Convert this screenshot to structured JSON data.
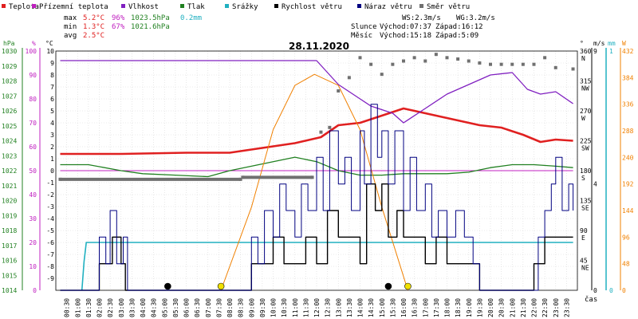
{
  "legend": [
    {
      "label": "Teplota",
      "color": "#e02020"
    },
    {
      "label": "Přízemní teplota",
      "color": "#c020c0"
    },
    {
      "label": "Vlhkost",
      "color": "#8020c0"
    },
    {
      "label": "Tlak",
      "color": "#208020"
    },
    {
      "label": "Srážky",
      "color": "#20b0c0"
    },
    {
      "label": "Rychlost větru",
      "color": "#000000"
    },
    {
      "label": "Náraz větru",
      "color": "#000080"
    },
    {
      "label": "Směr větru",
      "color": "#707070"
    }
  ],
  "stats": {
    "max_label": "max",
    "max_temp": "5.2°C",
    "max_hum": "96%",
    "max_press": "1023.5hPa",
    "max_rain": "0.2mm",
    "min_label": "min",
    "min_temp": "1.3°C",
    "min_hum": "67%",
    "min_press": "1021.6hPa",
    "avg_label": "avg",
    "avg_temp": "2.5°C"
  },
  "wind_info": {
    "ws": "WS:2.3m/s",
    "wg": "WG:3.2m/s"
  },
  "sun_moon": {
    "sun_label": "Slunce",
    "sun_rise": "Východ:07:37",
    "sun_set": "Západ:16:12",
    "moon_label": "Měsíc",
    "moon_rise": "Východ:15:18",
    "moon_set": "Západ:5:09"
  },
  "chart_data": {
    "type": "line",
    "title": "28.11.2020",
    "x_axis": {
      "label": "čas",
      "ticks": [
        "00:30",
        "01:00",
        "01:30",
        "02:00",
        "02:30",
        "03:00",
        "03:30",
        "04:00",
        "04:30",
        "05:00",
        "05:30",
        "06:00",
        "06:30",
        "07:00",
        "07:30",
        "08:00",
        "08:30",
        "09:00",
        "09:30",
        "10:00",
        "10:30",
        "11:00",
        "11:30",
        "12:00",
        "12:30",
        "13:00",
        "13:30",
        "14:00",
        "14:30",
        "15:00",
        "15:30",
        "16:00",
        "16:30",
        "17:00",
        "17:30",
        "18:00",
        "18:30",
        "19:00",
        "19:30",
        "20:00",
        "20:30",
        "21:00",
        "21:30",
        "22:00",
        "22:30",
        "23:00",
        "23:30"
      ]
    },
    "axes": {
      "pressure": {
        "unit": "hPa",
        "min": 1014,
        "max": 1030,
        "ticks": [
          1014,
          1015,
          1016,
          1017,
          1018,
          1019,
          1020,
          1021,
          1022,
          1023,
          1024,
          1025,
          1026,
          1027,
          1028,
          1029,
          1030
        ],
        "color": "#208020"
      },
      "humidity": {
        "unit": "%",
        "min": 0,
        "max": 100,
        "ticks": [
          0,
          10,
          20,
          30,
          40,
          50,
          60,
          70,
          80,
          90,
          100
        ],
        "color": "#c020c0"
      },
      "temperature": {
        "unit": "°C",
        "min": -10,
        "max": 10,
        "ticks": [
          10,
          9,
          8,
          7,
          6,
          5,
          4,
          3,
          2,
          1,
          0,
          -1,
          -2,
          -3,
          -4,
          -5,
          -6,
          -7,
          -8,
          -9
        ],
        "color": "#000000"
      },
      "wind_dir": {
        "unit": "°",
        "ticks": [
          {
            "v": 360,
            "t": "N"
          },
          {
            "v": 315,
            "t": "NW"
          },
          {
            "v": 270,
            "t": "W"
          },
          {
            "v": 225,
            "t": "SW"
          },
          {
            "v": 180,
            "t": "S"
          },
          {
            "v": 135,
            "t": "SE"
          },
          {
            "v": 90,
            "t": "E"
          },
          {
            "v": 45,
            "t": "NE"
          }
        ],
        "min": 0,
        "max": 360
      },
      "wind_speed": {
        "unit": "m/s",
        "min": 0,
        "max": 9,
        "ticks": [
          {
            "v": 9,
            "t": "9"
          },
          {
            "v": 4,
            "t": "4"
          },
          {
            "v": 0,
            "t": "0"
          }
        ]
      },
      "rain": {
        "unit": "mm",
        "min": 0,
        "max": 1,
        "ticks": [
          {
            "v": 1,
            "t": "1"
          },
          {
            "v": 0,
            "t": "0"
          }
        ]
      },
      "solar": {
        "unit": "W",
        "min": 0,
        "max": 432,
        "ticks": [
          432,
          384,
          336,
          288,
          240,
          192,
          144,
          96,
          48,
          0
        ]
      }
    },
    "series": [
      {
        "name": "Teplota",
        "axis": "temperature",
        "color": "#e02020",
        "x": [
          0.2,
          3,
          6,
          8,
          9.5,
          11,
          12.2,
          13,
          14,
          15,
          16,
          17,
          18,
          19,
          19.5,
          20.5,
          21.5,
          22.3,
          23,
          23.8
        ],
        "y": [
          1.4,
          1.4,
          1.5,
          1.5,
          1.9,
          2.3,
          2.8,
          3.8,
          4.0,
          4.6,
          5.2,
          4.8,
          4.4,
          4.0,
          3.8,
          3.6,
          3.0,
          2.4,
          2.6,
          2.5
        ]
      },
      {
        "name": "Přízemní teplota",
        "axis": "temperature",
        "color": "#c020c0",
        "x": [
          0.2,
          23.8
        ],
        "y": [
          0.0,
          0.0
        ]
      },
      {
        "name": "Vlhkost",
        "axis": "humidity",
        "color": "#8020c0",
        "x": [
          0.2,
          11.5,
          12,
          13,
          14,
          14.5,
          15.5,
          16,
          17,
          18,
          19,
          20,
          21,
          21.7,
          22.3,
          23,
          23.8
        ],
        "y": [
          96,
          96,
          96,
          86,
          80,
          77,
          74,
          70,
          76,
          82,
          86,
          90,
          91,
          84,
          82,
          83,
          78
        ]
      },
      {
        "name": "Tlak",
        "axis": "pressure",
        "color": "#208020",
        "x": [
          0.2,
          1.5,
          3,
          4,
          5.5,
          7,
          8,
          9,
          10,
          11,
          12,
          13,
          14,
          15,
          16,
          17,
          18,
          19,
          20,
          21,
          22,
          23,
          23.8
        ],
        "y": [
          1022.4,
          1022.4,
          1022.0,
          1021.8,
          1021.7,
          1021.6,
          1022.0,
          1022.3,
          1022.6,
          1022.9,
          1022.6,
          1022.0,
          1021.7,
          1021.7,
          1021.8,
          1021.8,
          1021.8,
          1021.9,
          1022.2,
          1022.4,
          1022.4,
          1022.3,
          1022.2
        ]
      },
      {
        "name": "Srážky",
        "axis": "rain",
        "color": "#20b0c0",
        "x": [
          1.2,
          1.3,
          1.4,
          23.8
        ],
        "y": [
          0,
          0.12,
          0.2,
          0.2
        ]
      },
      {
        "name": "Slunce",
        "axis": "solar",
        "color": "#f08000",
        "x": [
          7.6,
          9,
          10,
          11,
          11.9,
          13,
          14,
          15,
          16.2
        ],
        "y": [
          0,
          150,
          290,
          370,
          390,
          370,
          290,
          150,
          0
        ]
      },
      {
        "name": "Rychlost větru",
        "axis": "wind_speed",
        "color": "#000000",
        "x": [
          0.2,
          1.8,
          2,
          2.4,
          2.6,
          3,
          3.2,
          8.6,
          9,
          9.5,
          10,
          10.5,
          11,
          11.5,
          12,
          12.5,
          13,
          13.5,
          14,
          14.3,
          14.7,
          15,
          15.3,
          15.7,
          16,
          16.5,
          17,
          17.5,
          18,
          18.5,
          19,
          19.5,
          20,
          20.5,
          21,
          21.5,
          22,
          22.5,
          23,
          23.5,
          23.8
        ],
        "y": [
          0,
          0,
          1,
          1,
          2,
          1,
          0,
          0,
          1,
          1,
          2,
          1,
          1,
          2,
          1,
          3,
          2,
          2,
          1,
          4,
          3,
          4,
          2,
          3,
          2,
          2,
          1,
          2,
          1,
          1,
          1,
          0,
          0,
          0,
          0,
          0,
          1,
          2,
          2,
          2,
          2
        ]
      },
      {
        "name": "Náraz větru",
        "axis": "wind_speed",
        "color": "#000080",
        "x": [
          0.2,
          1.8,
          2,
          2.3,
          2.5,
          2.8,
          3.1,
          3.3,
          8.6,
          9,
          9.3,
          9.6,
          10,
          10.3,
          10.6,
          11,
          11.3,
          11.6,
          12,
          12.3,
          12.6,
          13,
          13.3,
          13.6,
          14,
          14.2,
          14.5,
          14.8,
          15,
          15.3,
          15.6,
          16,
          16.3,
          16.6,
          17,
          17.3,
          17.6,
          18,
          18.4,
          18.8,
          19.2,
          19.5,
          20,
          21,
          22,
          22.2,
          22.5,
          22.8,
          23,
          23.3,
          23.6,
          23.8
        ],
        "y": [
          0,
          0,
          2,
          1,
          3,
          1,
          2,
          0,
          0,
          2,
          1,
          3,
          2,
          4,
          3,
          2,
          4,
          3,
          5,
          3,
          6,
          4,
          5,
          3,
          6,
          4,
          7,
          5,
          6,
          4,
          6,
          3,
          5,
          3,
          4,
          2,
          3,
          2,
          3,
          2,
          1,
          0,
          0,
          0,
          0,
          2,
          3,
          4,
          5,
          3,
          4,
          3
        ]
      },
      {
        "name": "Směr větru",
        "axis": "wind_dir",
        "color": "#707070",
        "x": [
          0.2,
          8.5,
          8.6,
          11.8,
          12.2,
          12.6,
          13,
          13.5,
          14,
          14.5,
          15,
          15.5,
          16,
          16.5,
          17,
          17.5,
          18,
          18.5,
          19,
          19.5,
          20,
          20.5,
          21,
          21.5,
          22,
          22.5,
          23,
          23.8
        ],
        "y": [
          167,
          167,
          170,
          170,
          238,
          245,
          300,
          320,
          350,
          340,
          325,
          340,
          345,
          350,
          345,
          355,
          350,
          348,
          345,
          342,
          340,
          340,
          340,
          340,
          340,
          350,
          335,
          333
        ]
      }
    ],
    "markers": [
      {
        "name": "Východ Slunce",
        "x": 7.6,
        "color": "#f0e000"
      },
      {
        "name": "Západ Slunce",
        "x": 16.2,
        "color": "#f0e000"
      },
      {
        "name": "Východ Měsíce",
        "x": 15.3,
        "color": "#000000"
      },
      {
        "name": "Západ Měsíce",
        "x": 5.15,
        "color": "#000000"
      }
    ],
    "grid": true
  }
}
